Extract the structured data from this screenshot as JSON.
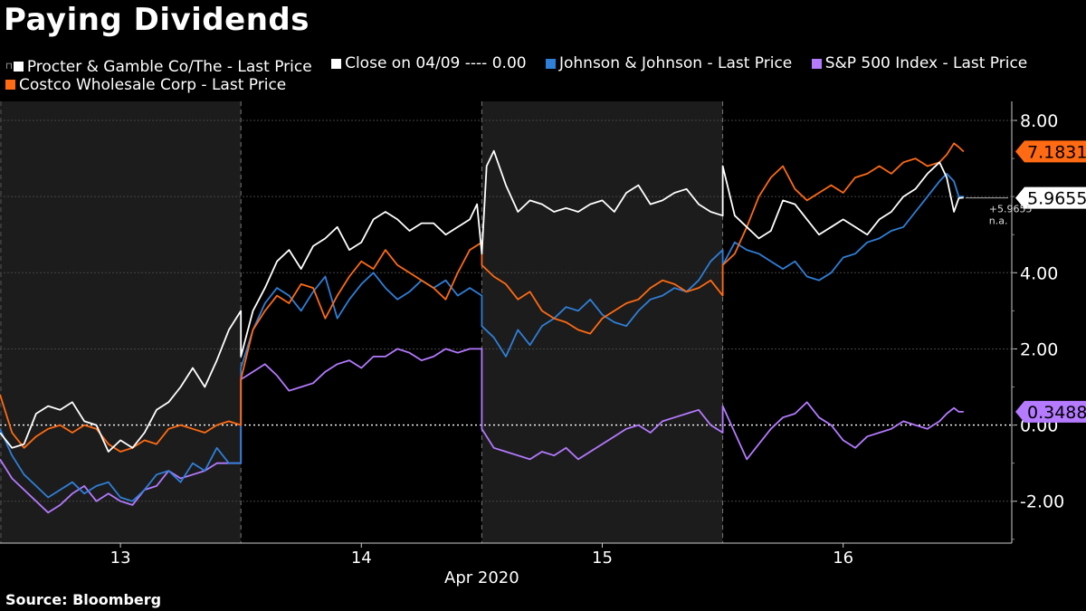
{
  "title": "Paying Dividends",
  "source": "Source: Bloomberg",
  "legend": [
    {
      "name": "Procter & Gamble Co/The - Last Price",
      "color": "#ffffff",
      "pin": "⊓"
    },
    {
      "name": "Close on 04/09 ---- 0.00",
      "color": "#ffffff",
      "pin": ""
    },
    {
      "name": "Johnson & Johnson - Last Price",
      "color": "#2f7fd8",
      "pin": ""
    },
    {
      "name": "S&P 500 Index - Last Price",
      "color": "#b47aff",
      "pin": ""
    },
    {
      "name": "Costco Wholesale Corp - Last Price",
      "color": "#ff6a13",
      "pin": ""
    }
  ],
  "chart_data": {
    "type": "line",
    "title": "Paying Dividends",
    "xlabel": "Apr 2020",
    "ylabel": "",
    "x_ticks": [
      "13",
      "14",
      "15",
      "16"
    ],
    "x_tick_positions": [
      0.5,
      1.5,
      2.5,
      3.5
    ],
    "xlim": [
      0,
      4.2
    ],
    "ylim": [
      -3.1,
      8.5
    ],
    "y_ticks": [
      -2,
      0,
      2,
      4,
      8
    ],
    "y_tick_labels": [
      "-2.00",
      "0.00",
      "2.00",
      "4.00",
      "8.00"
    ],
    "gridlines": [
      -2,
      2,
      4,
      6,
      8
    ],
    "reference_line": {
      "name": "Close on 04/09",
      "value": 0
    },
    "shaded_days": [
      [
        0,
        1
      ],
      [
        2,
        3
      ]
    ],
    "series": [
      {
        "name": "Procter & Gamble Co/The - Last Price",
        "color": "#ffffff",
        "x": [
          0,
          0.05,
          0.1,
          0.15,
          0.2,
          0.25,
          0.3,
          0.35,
          0.4,
          0.45,
          0.5,
          0.55,
          0.6,
          0.65,
          0.7,
          0.75,
          0.8,
          0.85,
          0.9,
          0.95,
          1.0,
          1.0,
          1.05,
          1.1,
          1.15,
          1.2,
          1.25,
          1.3,
          1.35,
          1.4,
          1.45,
          1.5,
          1.55,
          1.6,
          1.65,
          1.7,
          1.75,
          1.8,
          1.85,
          1.9,
          1.95,
          1.98,
          2.0,
          2.02,
          2.05,
          2.1,
          2.15,
          2.2,
          2.25,
          2.3,
          2.35,
          2.4,
          2.45,
          2.5,
          2.55,
          2.6,
          2.65,
          2.7,
          2.75,
          2.8,
          2.85,
          2.9,
          2.95,
          3.0,
          3.0,
          3.05,
          3.1,
          3.15,
          3.2,
          3.25,
          3.3,
          3.35,
          3.4,
          3.45,
          3.5,
          3.55,
          3.6,
          3.65,
          3.7,
          3.75,
          3.8,
          3.85,
          3.9,
          3.93,
          3.96,
          3.98,
          4.0
        ],
        "y": [
          -0.2,
          -0.6,
          -0.5,
          0.3,
          0.5,
          0.4,
          0.6,
          0.1,
          0.0,
          -0.7,
          -0.4,
          -0.6,
          -0.2,
          0.4,
          0.6,
          1.0,
          1.5,
          1.0,
          1.7,
          2.5,
          3.0,
          1.8,
          3.0,
          3.6,
          4.3,
          4.6,
          4.1,
          4.7,
          4.9,
          5.2,
          4.6,
          4.8,
          5.4,
          5.6,
          5.4,
          5.1,
          5.3,
          5.3,
          5.0,
          5.2,
          5.4,
          5.8,
          4.5,
          6.8,
          7.2,
          6.3,
          5.6,
          5.9,
          5.8,
          5.6,
          5.7,
          5.6,
          5.8,
          5.9,
          5.6,
          6.1,
          6.3,
          5.8,
          5.9,
          6.1,
          6.2,
          5.8,
          5.6,
          5.5,
          6.8,
          5.5,
          5.2,
          4.9,
          5.1,
          5.9,
          5.8,
          5.4,
          5.0,
          5.2,
          5.4,
          5.2,
          5.0,
          5.4,
          5.6,
          6.0,
          6.2,
          6.6,
          6.9,
          6.5,
          5.6,
          5.96,
          5.97
        ]
      },
      {
        "name": "Johnson & Johnson - Last Price",
        "color": "#2f7fd8",
        "x": [
          0,
          0.05,
          0.1,
          0.15,
          0.2,
          0.25,
          0.3,
          0.35,
          0.4,
          0.45,
          0.5,
          0.55,
          0.6,
          0.65,
          0.7,
          0.75,
          0.8,
          0.85,
          0.9,
          0.95,
          1.0,
          1.0,
          1.05,
          1.1,
          1.15,
          1.2,
          1.25,
          1.3,
          1.35,
          1.4,
          1.45,
          1.5,
          1.55,
          1.6,
          1.65,
          1.7,
          1.75,
          1.8,
          1.85,
          1.9,
          1.95,
          2.0,
          2.0,
          2.05,
          2.1,
          2.15,
          2.2,
          2.25,
          2.3,
          2.35,
          2.4,
          2.45,
          2.5,
          2.55,
          2.6,
          2.65,
          2.7,
          2.75,
          2.8,
          2.85,
          2.9,
          2.95,
          3.0,
          3.0,
          3.05,
          3.1,
          3.15,
          3.2,
          3.25,
          3.3,
          3.35,
          3.4,
          3.45,
          3.5,
          3.55,
          3.6,
          3.65,
          3.7,
          3.75,
          3.8,
          3.85,
          3.9,
          3.93,
          3.96,
          3.98,
          4.0
        ],
        "y": [
          -0.1,
          -0.8,
          -1.3,
          -1.6,
          -1.9,
          -1.7,
          -1.5,
          -1.8,
          -1.6,
          -1.5,
          -1.9,
          -2.0,
          -1.7,
          -1.3,
          -1.2,
          -1.5,
          -1.0,
          -1.2,
          -0.6,
          -1.0,
          -1.0,
          1.5,
          2.5,
          3.2,
          3.6,
          3.4,
          3.0,
          3.5,
          3.9,
          2.8,
          3.3,
          3.7,
          4.0,
          3.6,
          3.3,
          3.5,
          3.8,
          3.6,
          3.8,
          3.4,
          3.6,
          3.4,
          2.6,
          2.3,
          1.8,
          2.5,
          2.1,
          2.6,
          2.8,
          3.1,
          3.0,
          3.3,
          2.9,
          2.7,
          2.6,
          3.0,
          3.3,
          3.4,
          3.6,
          3.5,
          3.8,
          4.3,
          4.6,
          4.2,
          4.8,
          4.6,
          4.5,
          4.3,
          4.1,
          4.3,
          3.9,
          3.8,
          4.0,
          4.4,
          4.5,
          4.8,
          4.9,
          5.1,
          5.2,
          5.6,
          6.0,
          6.4,
          6.6,
          6.4,
          6.0,
          6.0
        ]
      },
      {
        "name": "S&P 500 Index - Last Price",
        "color": "#b47aff",
        "x": [
          0,
          0.05,
          0.1,
          0.15,
          0.2,
          0.25,
          0.3,
          0.35,
          0.4,
          0.45,
          0.5,
          0.55,
          0.6,
          0.65,
          0.7,
          0.75,
          0.8,
          0.85,
          0.9,
          0.95,
          1.0,
          1.0,
          1.05,
          1.1,
          1.15,
          1.2,
          1.25,
          1.3,
          1.35,
          1.4,
          1.45,
          1.5,
          1.55,
          1.6,
          1.65,
          1.7,
          1.75,
          1.8,
          1.85,
          1.9,
          1.95,
          2.0,
          2.0,
          2.05,
          2.1,
          2.15,
          2.2,
          2.25,
          2.3,
          2.35,
          2.4,
          2.45,
          2.5,
          2.55,
          2.6,
          2.65,
          2.7,
          2.75,
          2.8,
          2.85,
          2.9,
          2.95,
          3.0,
          3.0,
          3.05,
          3.1,
          3.15,
          3.2,
          3.25,
          3.3,
          3.35,
          3.4,
          3.45,
          3.5,
          3.55,
          3.6,
          3.65,
          3.7,
          3.75,
          3.8,
          3.85,
          3.9,
          3.93,
          3.96,
          3.98,
          4.0
        ],
        "y": [
          -0.9,
          -1.4,
          -1.7,
          -2.0,
          -2.3,
          -2.1,
          -1.8,
          -1.6,
          -2.0,
          -1.8,
          -2.0,
          -2.1,
          -1.7,
          -1.6,
          -1.2,
          -1.4,
          -1.3,
          -1.2,
          -1.0,
          -1.0,
          -1.0,
          1.2,
          1.4,
          1.6,
          1.3,
          0.9,
          1.0,
          1.1,
          1.4,
          1.6,
          1.7,
          1.5,
          1.8,
          1.8,
          2.0,
          1.9,
          1.7,
          1.8,
          2.0,
          1.9,
          2.0,
          2.0,
          -0.1,
          -0.6,
          -0.7,
          -0.8,
          -0.9,
          -0.7,
          -0.8,
          -0.6,
          -0.9,
          -0.7,
          -0.5,
          -0.3,
          -0.1,
          0.0,
          -0.2,
          0.1,
          0.2,
          0.3,
          0.4,
          0.0,
          -0.2,
          0.5,
          -0.2,
          -0.9,
          -0.5,
          -0.1,
          0.2,
          0.3,
          0.6,
          0.2,
          0.0,
          -0.4,
          -0.6,
          -0.3,
          -0.2,
          -0.1,
          0.1,
          0.0,
          -0.1,
          0.1,
          0.3,
          0.45,
          0.35,
          0.35
        ]
      },
      {
        "name": "Costco Wholesale Corp - Last Price",
        "color": "#ff6a13",
        "x": [
          0,
          0.05,
          0.1,
          0.15,
          0.2,
          0.25,
          0.3,
          0.35,
          0.4,
          0.45,
          0.5,
          0.55,
          0.6,
          0.65,
          0.7,
          0.75,
          0.8,
          0.85,
          0.9,
          0.95,
          1.0,
          1.0,
          1.05,
          1.1,
          1.15,
          1.2,
          1.25,
          1.3,
          1.35,
          1.4,
          1.45,
          1.5,
          1.55,
          1.6,
          1.65,
          1.7,
          1.75,
          1.8,
          1.85,
          1.9,
          1.95,
          2.0,
          2.0,
          2.05,
          2.1,
          2.15,
          2.2,
          2.25,
          2.3,
          2.35,
          2.4,
          2.45,
          2.5,
          2.55,
          2.6,
          2.65,
          2.7,
          2.75,
          2.8,
          2.85,
          2.9,
          2.95,
          3.0,
          3.0,
          3.05,
          3.1,
          3.15,
          3.2,
          3.25,
          3.3,
          3.35,
          3.4,
          3.45,
          3.5,
          3.55,
          3.6,
          3.65,
          3.7,
          3.75,
          3.8,
          3.85,
          3.9,
          3.93,
          3.96,
          3.98,
          4.0
        ],
        "y": [
          0.8,
          -0.2,
          -0.6,
          -0.3,
          -0.1,
          0.0,
          -0.2,
          0.0,
          -0.1,
          -0.5,
          -0.7,
          -0.6,
          -0.4,
          -0.5,
          -0.1,
          0.0,
          -0.1,
          -0.2,
          0.0,
          0.1,
          0.0,
          1.2,
          2.5,
          3.0,
          3.4,
          3.2,
          3.7,
          3.6,
          2.8,
          3.4,
          3.9,
          4.3,
          4.1,
          4.6,
          4.2,
          4.0,
          3.8,
          3.6,
          3.3,
          4.0,
          4.6,
          4.8,
          4.2,
          3.9,
          3.7,
          3.3,
          3.5,
          3.0,
          2.8,
          2.7,
          2.5,
          2.4,
          2.8,
          3.0,
          3.2,
          3.3,
          3.6,
          3.8,
          3.7,
          3.5,
          3.6,
          3.8,
          3.4,
          4.2,
          4.5,
          5.2,
          6.0,
          6.5,
          6.8,
          6.2,
          5.9,
          6.1,
          6.3,
          6.1,
          6.5,
          6.6,
          6.8,
          6.6,
          6.9,
          7.0,
          6.8,
          6.9,
          7.1,
          7.4,
          7.3,
          7.18
        ]
      }
    ],
    "last_value_labels": [
      {
        "series": "Costco Wholesale Corp - Last Price",
        "label": "7.1831",
        "value": 7.1831,
        "color": "#ff6a13",
        "text_color": "#000000"
      },
      {
        "series": "Procter & Gamble Co/The - Last Price",
        "label": "5.9655",
        "value": 5.9655,
        "color": "#ffffff",
        "text_color": "#000000"
      },
      {
        "series": "S&P 500 Index - Last Price",
        "label": "0.3488",
        "value": 0.3488,
        "color": "#b47aff",
        "text_color": "#000000"
      }
    ],
    "annotation": {
      "lines": [
        "+5.9655",
        "n.a."
      ],
      "value": 5.9655
    }
  }
}
